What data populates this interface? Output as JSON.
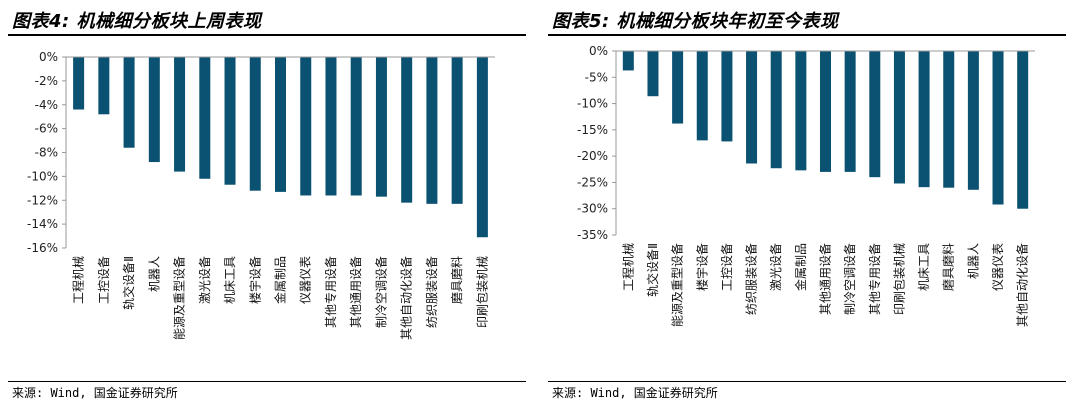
{
  "left": {
    "title": "图表4: 机械细分板块上周表现",
    "source": "来源: Wind, 国金证券研究所"
  },
  "right": {
    "title": "图表5: 机械细分板块年初至今表现",
    "source": "来源: Wind, 国金证券研究所"
  },
  "colors": {
    "bar": "#0b5272",
    "axis": "#999999"
  },
  "chart_data": [
    {
      "type": "bar",
      "title": "图表4: 机械细分板块上周表现",
      "categories": [
        "工程机械",
        "工控设备",
        "轨交设备Ⅱ",
        "机器人",
        "能源及重型设备",
        "激光设备",
        "机床工具",
        "楼宇设备",
        "金属制品",
        "仪器仪表",
        "其他专用设备",
        "其他通用设备",
        "制冷空调设备",
        "其他自动化设备",
        "纺织服装设备",
        "磨具磨料",
        "印刷包装机械"
      ],
      "values": [
        -4.4,
        -4.8,
        -7.6,
        -8.8,
        -9.6,
        -10.2,
        -10.7,
        -11.2,
        -11.3,
        -11.6,
        -11.6,
        -11.6,
        -11.7,
        -12.2,
        -12.3,
        -12.3,
        -15.1
      ],
      "ylim": [
        -16,
        0
      ],
      "yticks": [
        0,
        -2,
        -4,
        -6,
        -8,
        -10,
        -12,
        -14,
        -16
      ],
      "ytick_labels": [
        "0%",
        "-2%",
        "-4%",
        "-6%",
        "-8%",
        "-10%",
        "-12%",
        "-14%",
        "-16%"
      ],
      "grid": false
    },
    {
      "type": "bar",
      "title": "图表5: 机械细分板块年初至今表现",
      "categories": [
        "工程机械",
        "轨交设备Ⅱ",
        "能源及重型设备",
        "楼宇设备",
        "工控设备",
        "纺织服装设备",
        "激光设备",
        "金属制品",
        "其他通用设备",
        "制冷空调设备",
        "其他专用设备",
        "印刷包装机械",
        "机床工具",
        "磨具磨料",
        "机器人",
        "仪器仪表",
        "其他自动化设备"
      ],
      "values": [
        -3.7,
        -8.6,
        -13.8,
        -17.0,
        -17.2,
        -21.4,
        -22.3,
        -22.7,
        -23.0,
        -23.0,
        -24.0,
        -25.2,
        -25.9,
        -26.0,
        -26.4,
        -29.2,
        -30.0
      ],
      "ylim": [
        -35,
        0
      ],
      "yticks": [
        0,
        -5,
        -10,
        -15,
        -20,
        -25,
        -30,
        -35
      ],
      "ytick_labels": [
        "0%",
        "-5%",
        "-10%",
        "-15%",
        "-20%",
        "-25%",
        "-30%",
        "-35%"
      ],
      "grid": false
    }
  ]
}
